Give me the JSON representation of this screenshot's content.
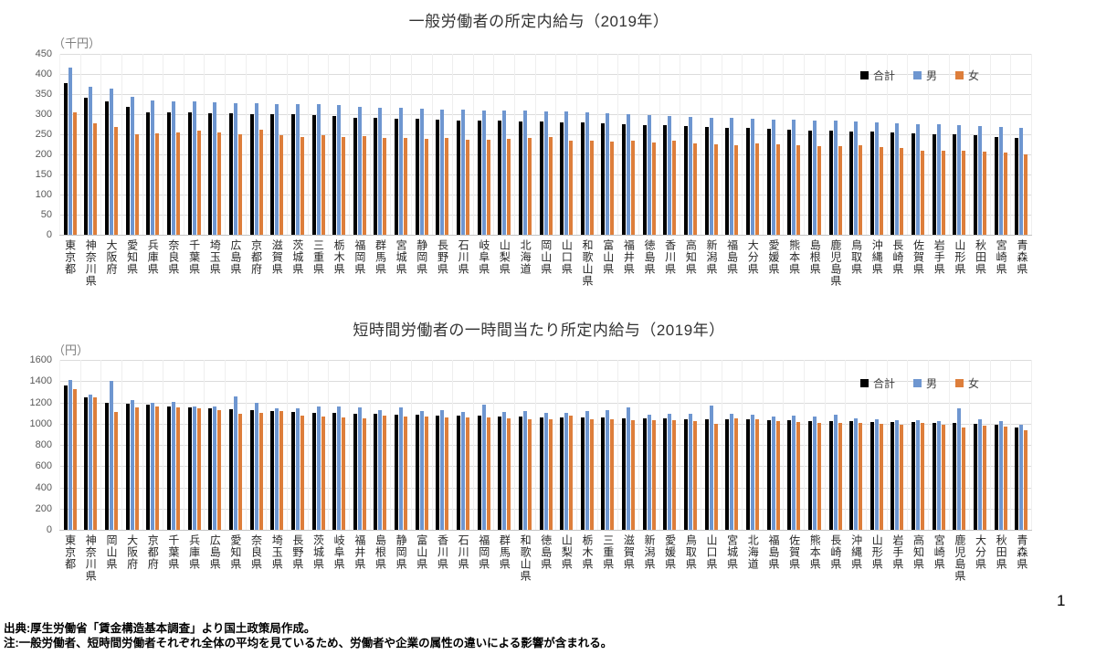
{
  "page": {
    "number": "1"
  },
  "footer": {
    "source": "出典:厚生労働省「賃金構造基本調査」より国土政策局作成。",
    "note": "注:一般労働者、短時間労働者それぞれ全体の平均を見ているため、労働者や企業の属性の違いによる影響が含まれる。"
  },
  "colors": {
    "total": "#000000",
    "male": "#6e96d0",
    "female": "#dd7e3b"
  },
  "chart_data": [
    {
      "type": "bar",
      "title": "一般労働者の所定内給与（2019年）",
      "unit_label": "（千円）",
      "ylabel": "千円",
      "ylim": [
        0,
        450
      ],
      "ytick_step": 50,
      "grid": true,
      "legend_position": "top-right-inside",
      "categories": [
        "東京都",
        "神奈川県",
        "大阪府",
        "愛知県",
        "兵庫県",
        "奈良県",
        "千葉県",
        "埼玉県",
        "広島県",
        "京都府",
        "滋賀県",
        "茨城県",
        "三重県",
        "栃木県",
        "福岡県",
        "群馬県",
        "宮城県",
        "静岡県",
        "長野県",
        "石川県",
        "岐阜県",
        "山梨県",
        "北海道",
        "岡山県",
        "山口県",
        "和歌山県",
        "富山県",
        "福井県",
        "徳島県",
        "香川県",
        "高知県",
        "新潟県",
        "福島県",
        "大分県",
        "愛媛県",
        "熊本県",
        "島根県",
        "鹿児島県",
        "鳥取県",
        "沖縄県",
        "長崎県",
        "佐賀県",
        "岩手県",
        "山形県",
        "秋田県",
        "宮崎県",
        "青森県"
      ],
      "series": [
        {
          "name": "合計",
          "color_key": "total",
          "values": [
            378,
            340,
            331,
            318,
            305,
            304,
            304,
            303,
            302,
            301,
            300,
            299,
            297,
            295,
            292,
            290,
            289,
            288,
            287,
            285,
            284,
            283,
            282,
            281,
            280,
            279,
            277,
            275,
            273,
            272,
            270,
            268,
            266,
            265,
            263,
            262,
            260,
            258,
            257,
            256,
            255,
            253,
            251,
            249,
            247,
            244,
            241
          ]
        },
        {
          "name": "男",
          "color_key": "male",
          "values": [
            415,
            368,
            364,
            344,
            333,
            331,
            332,
            329,
            328,
            328,
            325,
            325,
            324,
            322,
            318,
            316,
            315,
            314,
            312,
            311,
            310,
            309,
            308,
            307,
            306,
            305,
            302,
            300,
            298,
            296,
            294,
            292,
            290,
            289,
            287,
            286,
            284,
            283,
            281,
            279,
            278,
            276,
            274,
            272,
            271,
            269,
            267
          ]
        },
        {
          "name": "女",
          "color_key": "female",
          "values": [
            305,
            278,
            269,
            251,
            253,
            255,
            260,
            254,
            250,
            261,
            248,
            243,
            247,
            244,
            245,
            242,
            240,
            238,
            240,
            237,
            236,
            238,
            240,
            243,
            235,
            233,
            232,
            233,
            230,
            235,
            228,
            225,
            222,
            228,
            224,
            222,
            221,
            220,
            223,
            218,
            216,
            210,
            208,
            209,
            207,
            205,
            201
          ]
        }
      ]
    },
    {
      "type": "bar",
      "title": "短時間労働者の一時間当たり所定内給与（2019年）",
      "unit_label": "（円）",
      "ylabel": "円",
      "ylim": [
        0,
        1600
      ],
      "ytick_step": 200,
      "grid": true,
      "legend_position": "top-right-inside",
      "categories": [
        "東京都",
        "神奈川県",
        "岡山県",
        "大阪府",
        "京都府",
        "千葉県",
        "兵庫県",
        "広島県",
        "愛知県",
        "奈良県",
        "埼玉県",
        "長野県",
        "茨城県",
        "岐阜県",
        "福井県",
        "島根県",
        "静岡県",
        "富山県",
        "香川県",
        "石川県",
        "福岡県",
        "群馬県",
        "和歌山県",
        "徳島県",
        "山梨県",
        "栃木県",
        "三重県",
        "滋賀県",
        "新潟県",
        "愛媛県",
        "鳥取県",
        "山口県",
        "宮城県",
        "北海道",
        "福島県",
        "佐賀県",
        "熊本県",
        "長崎県",
        "沖縄県",
        "山形県",
        "岩手県",
        "高知県",
        "宮崎県",
        "鹿児島県",
        "大分県",
        "秋田県",
        "青森県"
      ],
      "series": [
        {
          "name": "合計",
          "color_key": "total",
          "values": [
            1360,
            1250,
            1195,
            1185,
            1175,
            1160,
            1150,
            1140,
            1135,
            1125,
            1120,
            1110,
            1105,
            1100,
            1095,
            1090,
            1085,
            1080,
            1078,
            1075,
            1072,
            1068,
            1065,
            1062,
            1060,
            1058,
            1055,
            1052,
            1050,
            1048,
            1045,
            1042,
            1040,
            1038,
            1035,
            1030,
            1028,
            1025,
            1022,
            1018,
            1015,
            1012,
            1008,
            1005,
            1000,
            990,
            960
          ]
        },
        {
          "name": "男",
          "color_key": "male",
          "values": [
            1410,
            1270,
            1400,
            1225,
            1195,
            1205,
            1165,
            1160,
            1255,
            1195,
            1140,
            1145,
            1165,
            1165,
            1155,
            1130,
            1150,
            1120,
            1130,
            1110,
            1180,
            1110,
            1115,
            1100,
            1100,
            1120,
            1130,
            1155,
            1085,
            1090,
            1090,
            1170,
            1090,
            1085,
            1065,
            1075,
            1070,
            1080,
            1050,
            1045,
            1030,
            1035,
            1025,
            1140,
            1040,
            1020,
            990
          ]
        },
        {
          "name": "女",
          "color_key": "female",
          "values": [
            1325,
            1250,
            1110,
            1155,
            1165,
            1155,
            1145,
            1130,
            1095,
            1100,
            1120,
            1075,
            1070,
            1060,
            1050,
            1075,
            1065,
            1070,
            1060,
            1060,
            1055,
            1050,
            1045,
            1045,
            1075,
            1045,
            1040,
            1035,
            1030,
            1030,
            1020,
            1000,
            1050,
            1040,
            1020,
            1015,
            1010,
            1005,
            1005,
            995,
            990,
            1005,
            990,
            965,
            985,
            975,
            935
          ]
        }
      ]
    }
  ]
}
